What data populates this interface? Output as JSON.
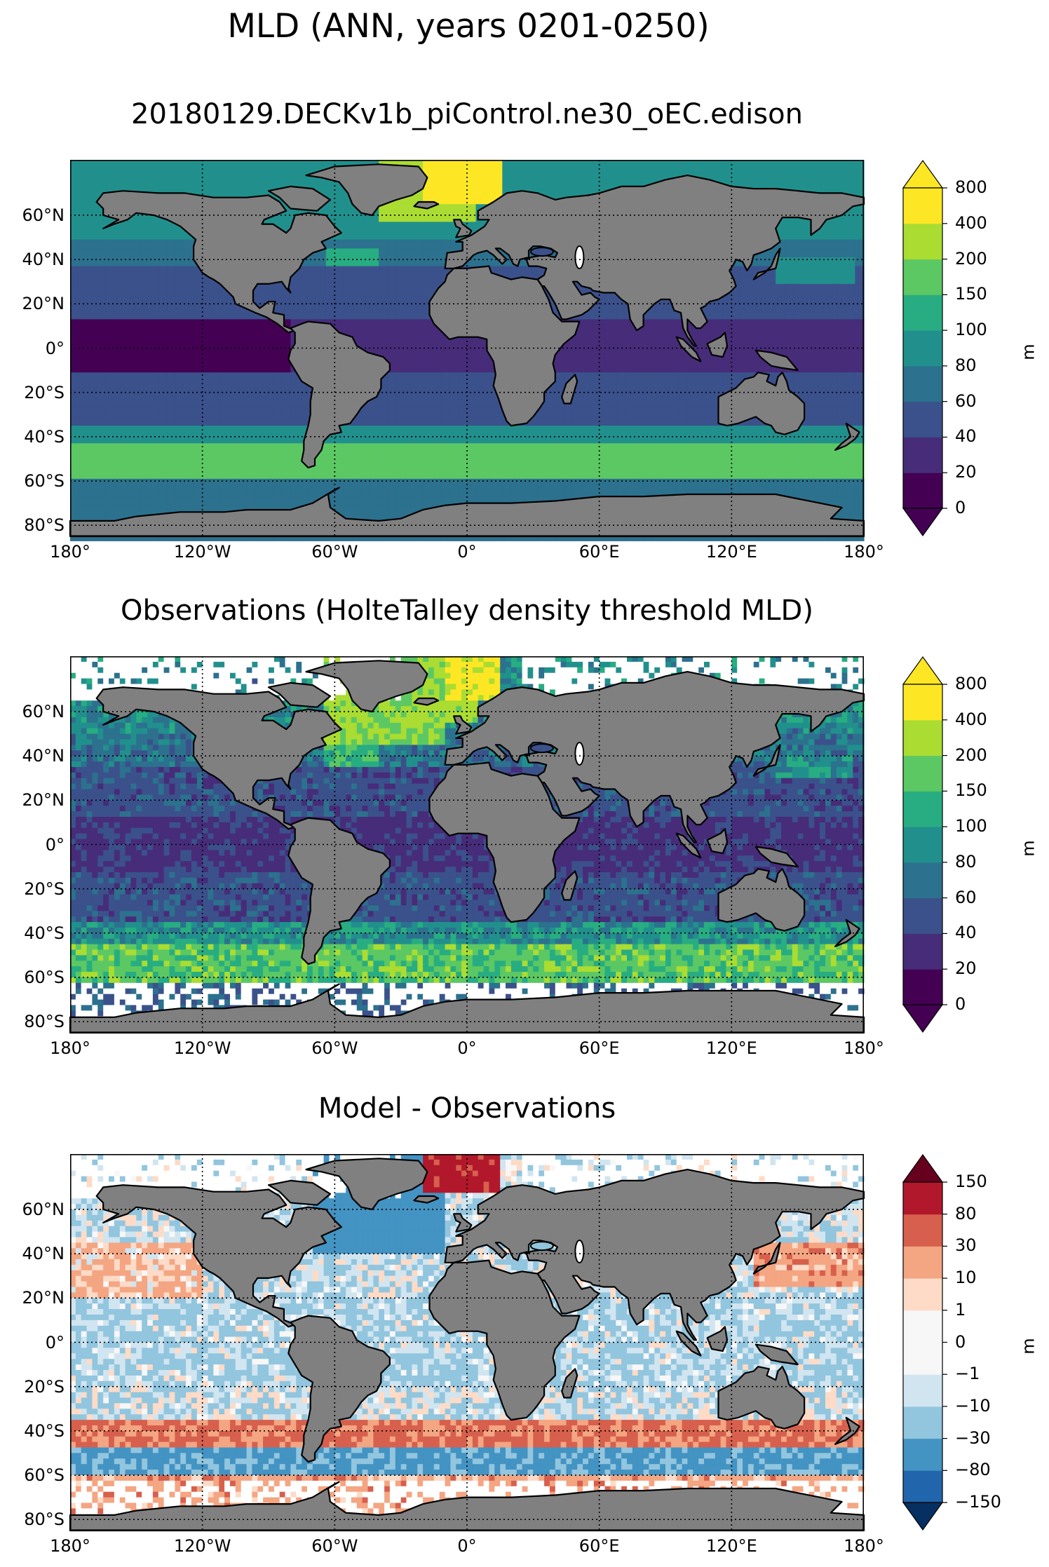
{
  "suptitle": "MLD (ANN, years 0201-0250)",
  "panels": [
    {
      "title": "20180129.DECKv1b_piControl.ne30_oEC.edison",
      "cmap": "viridis",
      "levels": [
        "0",
        "20",
        "40",
        "60",
        "80",
        "100",
        "150",
        "200",
        "400",
        "800"
      ],
      "unit": "m"
    },
    {
      "title": "Observations (HolteTalley density threshold MLD)",
      "cmap": "viridis",
      "levels": [
        "0",
        "20",
        "40",
        "60",
        "80",
        "100",
        "150",
        "200",
        "400",
        "800"
      ],
      "unit": "m"
    },
    {
      "title": "Model - Observations",
      "cmap": "rdbu",
      "levels": [
        "−150",
        "−80",
        "−30",
        "−10",
        "−1",
        "0",
        "1",
        "10",
        "30",
        "80",
        "150"
      ],
      "unit": "m"
    }
  ],
  "axes": {
    "lat_ticks": [
      "60°N",
      "40°N",
      "20°N",
      "0°",
      "20°S",
      "40°S",
      "60°S",
      "80°S"
    ],
    "lon_ticks": [
      "180°",
      "120°W",
      "60°W",
      "0°",
      "60°E",
      "120°E",
      "180°"
    ]
  },
  "colors": {
    "land": "#808080",
    "viridis": [
      "#440154",
      "#472c7a",
      "#3b518b",
      "#2c718e",
      "#21908d",
      "#27ad81",
      "#5cc863",
      "#aadc32",
      "#fde725"
    ],
    "rdbu": [
      "#2166ac",
      "#4393c3",
      "#92c5de",
      "#d1e5f0",
      "#f7f7f7",
      "#f7f7f7",
      "#fddbc7",
      "#f4a582",
      "#d6604d",
      "#b2182b"
    ],
    "rdbu_ext": [
      "#053061",
      "#67001f"
    ]
  },
  "chart_data": [
    {
      "type": "heatmap",
      "title": "20180129.DECKv1b_piControl.ne30_oEC.edison",
      "xlim": [
        -180,
        180
      ],
      "ylim": [
        -85,
        85
      ],
      "grid": true,
      "colorbar": "right",
      "colorbar_extend": "both",
      "colorbar_label": "m",
      "levels": [
        0,
        20,
        40,
        60,
        80,
        100,
        150,
        200,
        400,
        800
      ],
      "regions": [
        {
          "name": "North Atlantic (Greenland Sea)",
          "lon": -20,
          "lat": 65,
          "value": 300
        },
        {
          "name": "Southern Ocean ACC belt",
          "lon": 0,
          "lat": -50,
          "value": 120
        },
        {
          "name": "Equatorial Pacific",
          "lon": -120,
          "lat": 0,
          "value": 15
        },
        {
          "name": "Subtropical gyres",
          "lon": -150,
          "lat": 25,
          "value": 50
        }
      ]
    },
    {
      "type": "heatmap",
      "title": "Observations (HolteTalley density threshold MLD)",
      "xlim": [
        -180,
        180
      ],
      "ylim": [
        -85,
        85
      ],
      "grid": true,
      "colorbar": "right",
      "colorbar_extend": "both",
      "colorbar_label": "m",
      "levels": [
        0,
        20,
        40,
        60,
        80,
        100,
        150,
        200,
        400,
        800
      ],
      "regions": [
        {
          "name": "North Atlantic",
          "lon": -30,
          "lat": 60,
          "value": 250
        },
        {
          "name": "Southern Ocean ACC belt",
          "lon": -120,
          "lat": -52,
          "value": 180
        },
        {
          "name": "Equatorial Pacific",
          "lon": -120,
          "lat": 0,
          "value": 30
        },
        {
          "name": "Subtropical gyres",
          "lon": -150,
          "lat": 25,
          "value": 60
        }
      ]
    },
    {
      "type": "heatmap",
      "title": "Model - Observations",
      "xlim": [
        -180,
        180
      ],
      "ylim": [
        -85,
        85
      ],
      "grid": true,
      "colorbar": "right",
      "colorbar_extend": "both",
      "colorbar_label": "m",
      "levels": [
        -150,
        -80,
        -30,
        -10,
        -1,
        0,
        1,
        10,
        30,
        80,
        150
      ],
      "regions": [
        {
          "name": "North Atlantic subpolar",
          "lon": -40,
          "lat": 55,
          "value": -50
        },
        {
          "name": "Southern Ocean 40S band",
          "lon": -120,
          "lat": -42,
          "value": 40
        },
        {
          "name": "Southern Ocean 55S band",
          "lon": 0,
          "lat": -55,
          "value": -40
        },
        {
          "name": "Tropical Pacific",
          "lon": -150,
          "lat": 5,
          "value": -15
        },
        {
          "name": "North Pacific 35N",
          "lon": 160,
          "lat": 35,
          "value": 20
        }
      ]
    }
  ]
}
